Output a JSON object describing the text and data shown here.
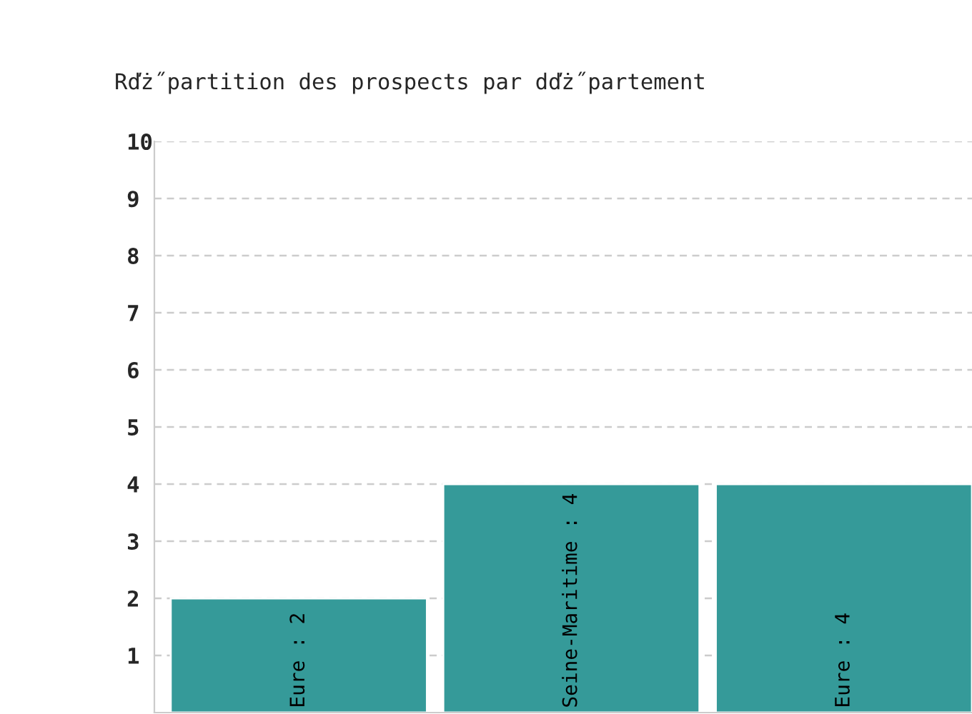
{
  "chart_data": {
    "type": "bar",
    "title": "Rďż˝partition des prospects par dďż˝partement",
    "categories": [
      null,
      null,
      null
    ],
    "values": [
      2,
      4,
      4
    ],
    "value_labels": [
      "Eure : 2",
      "Seine-Maritime : 4",
      "Eure : 4"
    ],
    "color": "#359a99",
    "ylim": [
      0,
      10
    ],
    "yticks": [
      1,
      2,
      3,
      4,
      5,
      6,
      7,
      8,
      9,
      10
    ],
    "grid": "y",
    "legend": false
  }
}
